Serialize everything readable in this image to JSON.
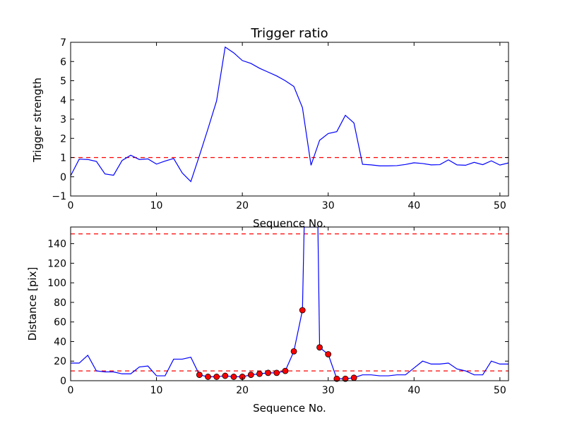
{
  "chart_data": [
    {
      "type": "line",
      "title": "Trigger ratio",
      "xlabel": "Sequence No.",
      "ylabel": "Trigger strength",
      "xlim": [
        0,
        51
      ],
      "ylim": [
        -1,
        7
      ],
      "xticks": [
        0,
        10,
        20,
        30,
        40,
        50
      ],
      "yticks": [
        -1,
        0,
        1,
        2,
        3,
        4,
        5,
        6,
        7
      ],
      "xtick_labels": [
        "0",
        "10",
        "20",
        "30",
        "40",
        "50"
      ],
      "ytick_labels": [
        "−1",
        "0",
        "1",
        "2",
        "3",
        "4",
        "5",
        "6",
        "7"
      ],
      "grid": false,
      "colors": {
        "series": "#0000ff",
        "reference": "#ff0000"
      },
      "series": [
        {
          "x": [
            0,
            1,
            2,
            3,
            4,
            5,
            6,
            7,
            8,
            9,
            10,
            11,
            12,
            13,
            14,
            15,
            16,
            17,
            18,
            19,
            20,
            21,
            22,
            23,
            24,
            25,
            26,
            27,
            28,
            29,
            30,
            31,
            32,
            33,
            34,
            35,
            36,
            37,
            38,
            39,
            40,
            41,
            42,
            43,
            44,
            45,
            46,
            47,
            48,
            49,
            50,
            51
          ],
          "values": [
            0.05,
            0.92,
            0.9,
            0.8,
            0.15,
            0.08,
            0.85,
            1.12,
            0.9,
            0.93,
            0.66,
            0.82,
            0.95,
            0.2,
            -0.25,
            1.1,
            2.5,
            3.95,
            6.75,
            6.45,
            6.05,
            5.9,
            5.65,
            5.45,
            5.25,
            5.0,
            4.7,
            3.6,
            0.6,
            1.9,
            2.25,
            2.35,
            3.2,
            2.8,
            0.65,
            0.62,
            0.57,
            0.57,
            0.58,
            0.64,
            0.73,
            0.69,
            0.62,
            0.63,
            0.88,
            0.62,
            0.6,
            0.75,
            0.63,
            0.83,
            0.61,
            0.72
          ]
        }
      ],
      "reference_lines": [
        {
          "y": 1.0
        }
      ]
    },
    {
      "type": "line",
      "title": "",
      "xlabel": "Sequence No.",
      "ylabel": "Distance [pix]",
      "xlim": [
        0,
        51
      ],
      "ylim": [
        0,
        157
      ],
      "xticks": [
        0,
        10,
        20,
        30,
        40,
        50
      ],
      "yticks": [
        0,
        20,
        40,
        60,
        80,
        100,
        120,
        140
      ],
      "xtick_labels": [
        "0",
        "10",
        "20",
        "30",
        "40",
        "50"
      ],
      "ytick_labels": [
        "0",
        "20",
        "40",
        "60",
        "80",
        "100",
        "120",
        "140"
      ],
      "grid": false,
      "colors": {
        "series": "#0000ff",
        "reference": "#ff0000",
        "markers": "#ff0000"
      },
      "series": [
        {
          "x": [
            0,
            1,
            2,
            3,
            4,
            5,
            6,
            7,
            8,
            9,
            10,
            11,
            12,
            13,
            14,
            15,
            16,
            17,
            18,
            19,
            20,
            21,
            22,
            23,
            24,
            25,
            26,
            27,
            27.2,
            28.8,
            29,
            30,
            31,
            32,
            33,
            34,
            35,
            36,
            37,
            38,
            39,
            40,
            41,
            42,
            43,
            44,
            45,
            46,
            47,
            48,
            49,
            50,
            51
          ],
          "values": [
            18,
            18,
            26,
            10,
            9,
            9,
            7,
            7,
            14,
            15,
            5,
            5,
            22,
            22,
            24,
            6,
            4,
            4,
            5,
            4,
            4,
            6,
            7,
            8,
            8,
            10,
            30,
            72,
            157,
            157,
            34,
            27,
            2,
            2,
            3,
            6,
            6,
            5,
            5,
            6,
            6,
            13,
            20,
            17,
            17,
            18,
            12,
            10,
            6,
            6,
            20,
            17,
            17
          ]
        }
      ],
      "highlighted_points": {
        "x": [
          15,
          16,
          17,
          18,
          19,
          20,
          21,
          22,
          23,
          24,
          25,
          26,
          27,
          29,
          30,
          31,
          32,
          33
        ],
        "values": [
          6,
          4,
          4,
          5,
          4,
          4,
          6,
          7,
          8,
          8,
          10,
          30,
          72,
          34,
          27,
          2,
          2,
          3
        ]
      },
      "reference_lines": [
        {
          "y": 10
        },
        {
          "y": 150
        }
      ]
    }
  ]
}
